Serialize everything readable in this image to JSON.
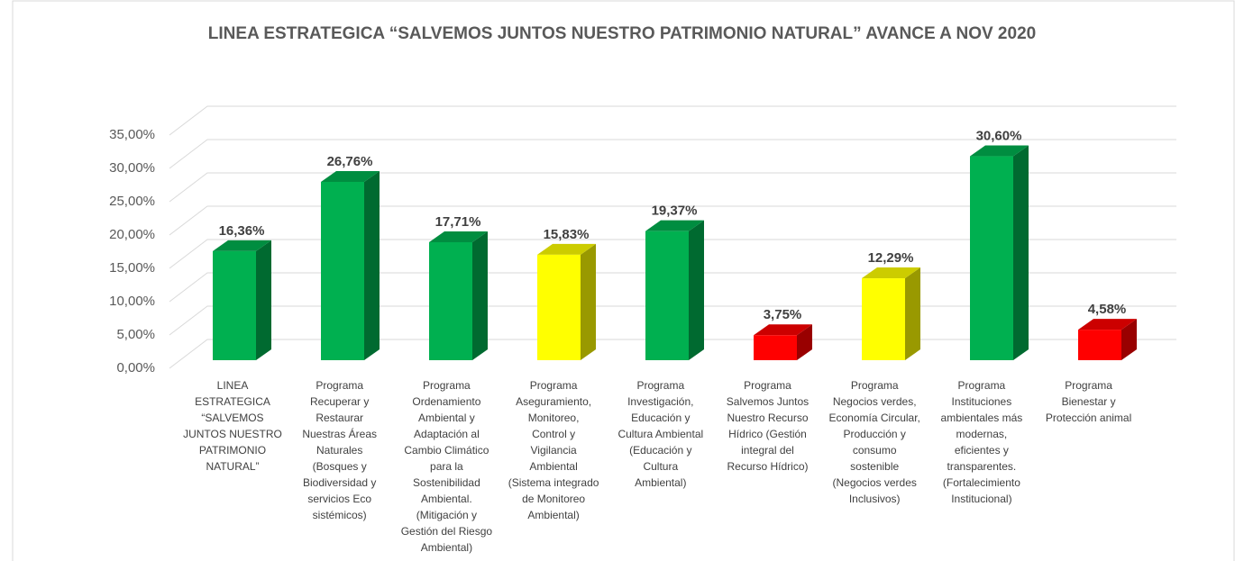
{
  "chart_data": {
    "type": "bar3d",
    "title": "LINEA ESTRATEGICA  “SALVEMOS JUNTOS NUESTRO PATRIMONIO NATURAL” AVANCE A NOV 2020",
    "categories": [
      "LINEA\nESTRATEGICA\n“SALVEMOS\nJUNTOS NUESTRO\nPATRIMONIO\nNATURAL”",
      "Programa\nRecuperar y\nRestaurar\nNuestras Áreas\nNaturales\n(Bosques  y\nBiodiversidad y\nservicios Eco\nsistémicos)",
      "Programa\nOrdenamiento\nAmbiental y\nAdaptación al\nCambio Climático\npara la\nSostenibilidad\nAmbiental.\n(Mitigación y\nGestión del Riesgo\nAmbiental)",
      "Programa\nAseguramiento,\nMonitoreo,\nControl y\nVigilancia\nAmbiental\n(Sistema integrado\nde Monitoreo\nAmbiental)",
      "Programa\nInvestigación,\nEducación y\nCultura Ambiental\n(Educación y\nCultura\nAmbiental)",
      "Programa\nSalvemos Juntos\nNuestro Recurso\nHídrico (Gestión\nintegral del\nRecurso Hídrico)",
      "Programa\nNegocios verdes,\nEconomía Circular,\nProducción y\nconsumo\nsostenible\n(Negocios verdes\nInclusivos)",
      "Programa\nInstituciones\nambientales más\nmodernas,\neficientes y\ntransparentes.\n(Fortalecimiento\nInstitucional)",
      "Programa\nBienestar y\nProtección animal"
    ],
    "values": [
      16.36,
      26.76,
      17.71,
      15.83,
      19.37,
      3.75,
      12.29,
      30.6,
      4.58
    ],
    "value_labels": [
      "16,36%",
      "26,76%",
      "17,71%",
      "15,83%",
      "19,37%",
      "3,75%",
      "12,29%",
      "30,60%",
      "4,58%"
    ],
    "colors": [
      "#00b050",
      "#00b050",
      "#00b050",
      "#ffff00",
      "#00b050",
      "#ff0000",
      "#ffff00",
      "#00b050",
      "#ff0000"
    ],
    "ylim": [
      0,
      35
    ],
    "yticks": [
      {
        "value": 0,
        "label": "0,00%"
      },
      {
        "value": 5,
        "label": "5,00%"
      },
      {
        "value": 10,
        "label": "10,00%"
      },
      {
        "value": 15,
        "label": "15,00%"
      },
      {
        "value": 20,
        "label": "20,00%"
      },
      {
        "value": 25,
        "label": "25,00%"
      },
      {
        "value": 30,
        "label": "30,00%"
      },
      {
        "value": 35,
        "label": "35,00%"
      }
    ],
    "grid": true
  }
}
